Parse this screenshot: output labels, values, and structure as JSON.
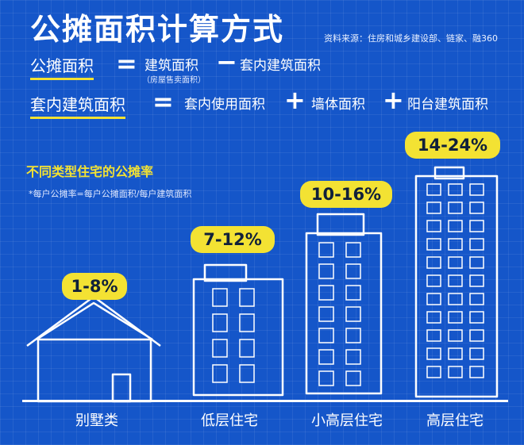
{
  "title": "公摊面积计算方式",
  "source": "资料来源：住房和城乡建设部、链家、融360",
  "formula1": {
    "left": "公摊面积",
    "op1": "=",
    "term1": "建筑面积",
    "term1_note": "（房屋售卖面积）",
    "op2": "−",
    "term2": "套内建筑面积"
  },
  "formula2": {
    "left": "套内建筑面积",
    "op1": "=",
    "term1": "套内使用面积",
    "op2": "+",
    "term2": "墙体面积",
    "op3": "+",
    "term3": "阳台建筑面积"
  },
  "section_title": "不同类型住宅的公摊率",
  "note": "*每户公摊率=每户公摊面积/每户建筑面积",
  "houses": [
    {
      "rate": "1-8%",
      "label": "别墅类"
    },
    {
      "rate": "7-12%",
      "label": "低层住宅"
    },
    {
      "rate": "10-16%",
      "label": "小高层住宅"
    },
    {
      "rate": "14-24%",
      "label": "高层住宅"
    }
  ],
  "colors": {
    "background": "#1556c9",
    "accent": "#f3e233",
    "text": "#ffffff"
  }
}
